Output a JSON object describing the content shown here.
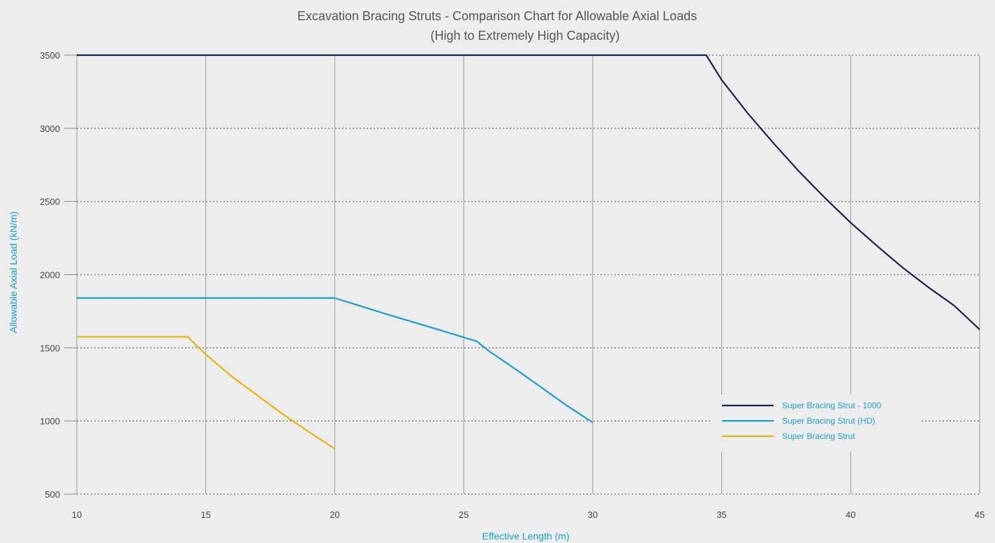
{
  "chart_data": {
    "type": "line",
    "title": "Excavation Bracing Struts - Comparison Chart for Allowable Axial Loads",
    "subtitle": "(High to Extremely High Capacity)",
    "xlabel": "Effective Length (m)",
    "ylabel": "Allowable Axial Load (kN/m)",
    "xlim": [
      10,
      45
    ],
    "ylim": [
      500,
      3500
    ],
    "xticks": [
      "10",
      "15",
      "20",
      "25",
      "30",
      "35",
      "40",
      "45"
    ],
    "yticks": [
      "500",
      "1000",
      "1500",
      "2000",
      "2500",
      "3000",
      "3500"
    ],
    "legend_position": "bottom-right",
    "grid": {
      "vertical": "solid",
      "horizontal": "dotted"
    },
    "series": [
      {
        "name": "Super Bracing Strut - 1000",
        "color": "#14234b",
        "points": [
          [
            10,
            3500
          ],
          [
            34.4,
            3500
          ],
          [
            35,
            3330
          ],
          [
            36,
            3105
          ],
          [
            37,
            2900
          ],
          [
            38,
            2705
          ],
          [
            39,
            2525
          ],
          [
            40,
            2355
          ],
          [
            41,
            2200
          ],
          [
            42,
            2050
          ],
          [
            43,
            1915
          ],
          [
            44,
            1790
          ],
          [
            45,
            1625
          ]
        ]
      },
      {
        "name": "Super Bracing Strut (HD)",
        "color": "#1a9fcb",
        "points": [
          [
            10,
            1840
          ],
          [
            20,
            1840
          ],
          [
            22,
            1730
          ],
          [
            24,
            1625
          ],
          [
            25.5,
            1545
          ],
          [
            26,
            1475
          ],
          [
            27,
            1355
          ],
          [
            28,
            1230
          ],
          [
            29,
            1105
          ],
          [
            30,
            990
          ]
        ]
      },
      {
        "name": "Super Bracing Strut",
        "color": "#e6b40f",
        "points": [
          [
            10,
            1575
          ],
          [
            14.3,
            1575
          ],
          [
            15,
            1455
          ],
          [
            16,
            1305
          ],
          [
            17,
            1175
          ],
          [
            18,
            1045
          ],
          [
            19,
            925
          ],
          [
            20,
            810
          ]
        ]
      }
    ]
  }
}
